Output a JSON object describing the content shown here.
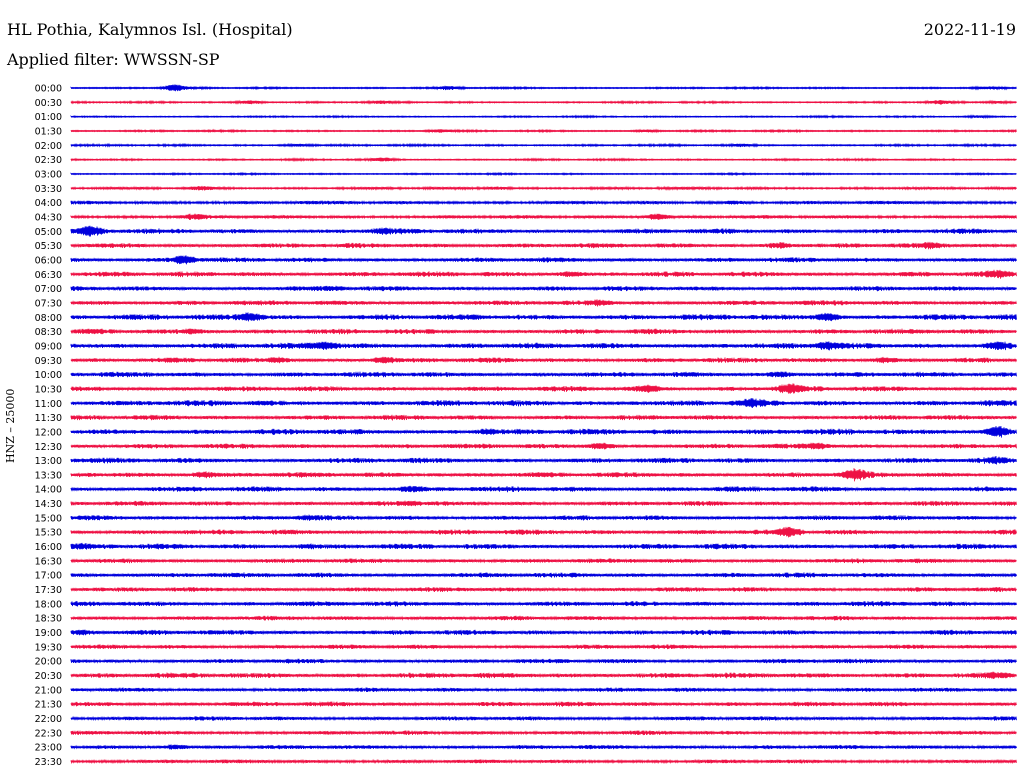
{
  "header": {
    "station": "HL Pothia, Kalymnos Isl. (Hospital)",
    "date": "2022-11-19",
    "filter": "Applied filter: WWSSN-SP"
  },
  "chart_data": {
    "type": "line",
    "title": "HL Pothia, Kalymnos Isl. (Hospital)",
    "channel_label": "HNZ  –  25000",
    "colors": {
      "even": "#0000dd",
      "odd": "#ee1144"
    },
    "traces": [
      {
        "time": "00:00",
        "noise": 0.9,
        "events": [
          [
            0.11,
            3.0
          ],
          [
            0.4,
            1.5
          ],
          [
            0.97,
            1.0
          ]
        ]
      },
      {
        "time": "00:30",
        "noise": 0.9,
        "events": [
          [
            0.19,
            1.8
          ],
          [
            0.33,
            1.2
          ],
          [
            0.92,
            1.5
          ],
          [
            0.98,
            1.0
          ]
        ]
      },
      {
        "time": "01:00",
        "noise": 0.8,
        "events": [
          [
            0.96,
            1.2
          ]
        ]
      },
      {
        "time": "01:30",
        "noise": 0.9,
        "events": [
          [
            0.39,
            1.3
          ],
          [
            0.61,
            1.0
          ]
        ]
      },
      {
        "time": "02:00",
        "noise": 1.0,
        "events": [
          [
            0.24,
            1.2
          ],
          [
            0.71,
            1.0
          ]
        ]
      },
      {
        "time": "02:30",
        "noise": 0.9,
        "events": [
          [
            0.33,
            1.5
          ]
        ]
      },
      {
        "time": "03:00",
        "noise": 0.8,
        "events": []
      },
      {
        "time": "03:30",
        "noise": 1.3,
        "events": [
          [
            0.14,
            1.4
          ],
          [
            0.45,
            1.0
          ]
        ]
      },
      {
        "time": "04:00",
        "noise": 1.7,
        "events": [
          [
            0.7,
            1.4
          ]
        ]
      },
      {
        "time": "04:30",
        "noise": 1.7,
        "events": [
          [
            0.13,
            1.8
          ],
          [
            0.62,
            2.5
          ]
        ]
      },
      {
        "time": "05:00",
        "noise": 2.5,
        "events": [
          [
            0.02,
            4.0
          ],
          [
            0.33,
            1.5
          ]
        ]
      },
      {
        "time": "05:30",
        "noise": 2.3,
        "events": [
          [
            0.75,
            2.0
          ],
          [
            0.91,
            1.8
          ]
        ]
      },
      {
        "time": "06:00",
        "noise": 2.3,
        "events": [
          [
            0.12,
            3.5
          ]
        ]
      },
      {
        "time": "06:30",
        "noise": 2.5,
        "events": [
          [
            0.53,
            2.0
          ],
          [
            0.98,
            2.5
          ]
        ]
      },
      {
        "time": "07:00",
        "noise": 2.3,
        "events": [
          [
            0.28,
            1.3
          ]
        ]
      },
      {
        "time": "07:30",
        "noise": 2.4,
        "events": [
          [
            0.56,
            1.6
          ]
        ]
      },
      {
        "time": "08:00",
        "noise": 2.8,
        "events": [
          [
            0.19,
            3.5
          ],
          [
            0.8,
            3.0
          ]
        ]
      },
      {
        "time": "08:30",
        "noise": 2.5,
        "events": [
          [
            0.13,
            1.5
          ]
        ]
      },
      {
        "time": "09:00",
        "noise": 2.8,
        "events": [
          [
            0.27,
            3.5
          ],
          [
            0.8,
            3.0
          ],
          [
            0.98,
            3.0
          ]
        ]
      },
      {
        "time": "09:30",
        "noise": 2.4,
        "events": [
          [
            0.22,
            2.0
          ],
          [
            0.33,
            2.0
          ],
          [
            0.86,
            2.0
          ]
        ]
      },
      {
        "time": "10:00",
        "noise": 2.5,
        "events": [
          [
            0.75,
            2.0
          ]
        ]
      },
      {
        "time": "10:30",
        "noise": 2.5,
        "events": [
          [
            0.61,
            2.5
          ],
          [
            0.76,
            3.5
          ]
        ]
      },
      {
        "time": "11:00",
        "noise": 2.8,
        "events": [
          [
            0.72,
            2.5
          ]
        ]
      },
      {
        "time": "11:30",
        "noise": 2.4,
        "events": []
      },
      {
        "time": "12:00",
        "noise": 2.8,
        "events": [
          [
            0.44,
            1.5
          ],
          [
            0.98,
            4.5
          ]
        ]
      },
      {
        "time": "12:30",
        "noise": 2.4,
        "events": [
          [
            0.56,
            2.5
          ],
          [
            0.79,
            2.0
          ]
        ]
      },
      {
        "time": "13:00",
        "noise": 2.5,
        "events": [
          [
            0.98,
            2.2
          ]
        ]
      },
      {
        "time": "13:30",
        "noise": 2.5,
        "events": [
          [
            0.14,
            2.0
          ],
          [
            0.83,
            4.0
          ]
        ]
      },
      {
        "time": "14:00",
        "noise": 2.6,
        "events": [
          [
            0.36,
            1.6
          ]
        ]
      },
      {
        "time": "14:30",
        "noise": 2.3,
        "events": [
          [
            0.36,
            1.6
          ]
        ]
      },
      {
        "time": "15:00",
        "noise": 2.3,
        "events": [
          [
            0.25,
            1.5
          ]
        ]
      },
      {
        "time": "15:30",
        "noise": 2.5,
        "events": [
          [
            0.76,
            3.5
          ]
        ]
      },
      {
        "time": "16:00",
        "noise": 2.6,
        "events": [
          [
            0.01,
            1.5
          ],
          [
            0.25,
            1.5
          ]
        ]
      },
      {
        "time": "16:30",
        "noise": 2.2,
        "events": []
      },
      {
        "time": "17:00",
        "noise": 2.4,
        "events": []
      },
      {
        "time": "17:30",
        "noise": 2.2,
        "events": []
      },
      {
        "time": "18:00",
        "noise": 2.4,
        "events": []
      },
      {
        "time": "18:30",
        "noise": 2.1,
        "events": []
      },
      {
        "time": "19:00",
        "noise": 2.4,
        "events": [
          [
            0.01,
            1.5
          ]
        ]
      },
      {
        "time": "19:30",
        "noise": 2.1,
        "events": []
      },
      {
        "time": "20:00",
        "noise": 2.2,
        "events": []
      },
      {
        "time": "20:30",
        "noise": 2.6,
        "events": [
          [
            0.98,
            1.6
          ]
        ]
      },
      {
        "time": "21:00",
        "noise": 2.0,
        "events": []
      },
      {
        "time": "21:30",
        "noise": 2.3,
        "events": []
      },
      {
        "time": "22:00",
        "noise": 2.0,
        "events": []
      },
      {
        "time": "22:30",
        "noise": 2.0,
        "events": []
      },
      {
        "time": "23:00",
        "noise": 2.0,
        "events": [
          [
            0.11,
            2.0
          ]
        ]
      },
      {
        "time": "23:30",
        "noise": 1.8,
        "events": []
      }
    ]
  }
}
